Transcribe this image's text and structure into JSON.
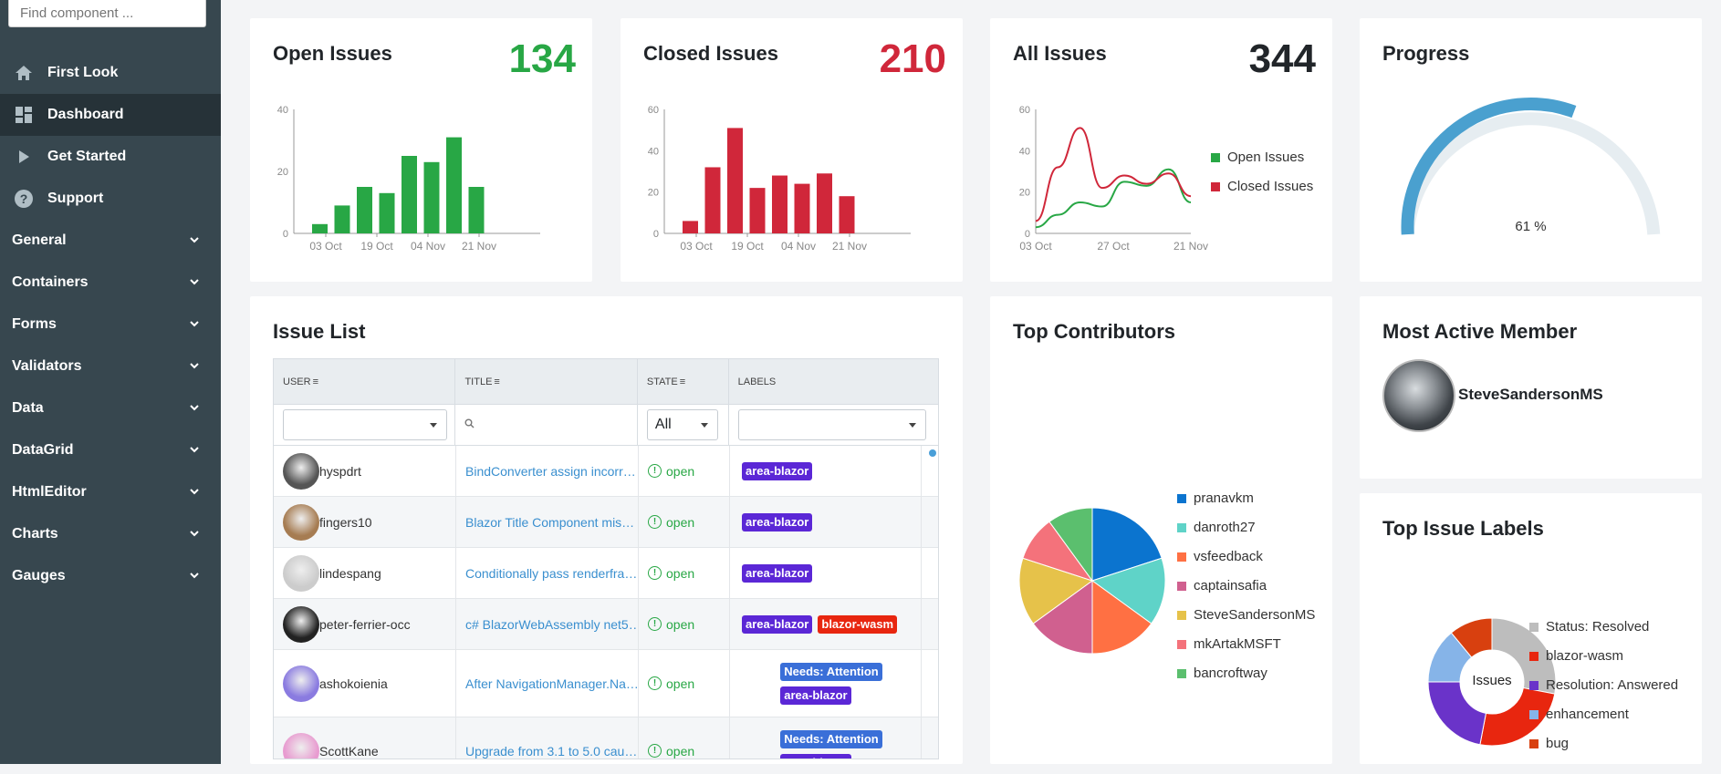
{
  "sidebar": {
    "search_placeholder": "Find component ...",
    "top_items": [
      {
        "label": "First Look",
        "icon": "home-icon"
      },
      {
        "label": "Dashboard",
        "icon": "dashboard-icon",
        "active": true
      },
      {
        "label": "Get Started",
        "icon": "play-icon"
      },
      {
        "label": "Support",
        "icon": "help-icon"
      }
    ],
    "groups": [
      "General",
      "Containers",
      "Forms",
      "Validators",
      "Data",
      "DataGrid",
      "HtmlEditor",
      "Charts",
      "Gauges"
    ]
  },
  "open_issues": {
    "title": "Open Issues",
    "count": "134",
    "color": "#28a745",
    "chart_data": {
      "type": "bar",
      "values": [
        3,
        9,
        15,
        13,
        25,
        23,
        31,
        15
      ],
      "tick_labels": [
        "03 Oct",
        "19 Oct",
        "04 Nov",
        "21 Nov"
      ],
      "y_ticks": [
        "0",
        "20",
        "40"
      ],
      "ylim": [
        0,
        40
      ]
    }
  },
  "closed_issues": {
    "title": "Closed Issues",
    "count": "210",
    "color": "#d0273a",
    "chart_data": {
      "type": "bar",
      "values": [
        6,
        32,
        51,
        22,
        28,
        24,
        29,
        18
      ],
      "tick_labels": [
        "03 Oct",
        "19 Oct",
        "04 Nov",
        "21 Nov"
      ],
      "y_ticks": [
        "0",
        "20",
        "40",
        "60"
      ],
      "ylim": [
        0,
        60
      ]
    }
  },
  "all_issues": {
    "title": "All Issues",
    "count": "344",
    "chart_data": {
      "type": "line",
      "x_ticks": [
        "03 Oct",
        "27 Oct",
        "21 Nov"
      ],
      "y_ticks": [
        "0",
        "20",
        "40",
        "60"
      ],
      "ylim": [
        0,
        60
      ],
      "series": [
        {
          "name": "Open Issues",
          "color": "#28a745",
          "values": [
            3,
            9,
            15,
            13,
            25,
            23,
            31,
            15
          ]
        },
        {
          "name": "Closed Issues",
          "color": "#d0273a",
          "values": [
            6,
            32,
            51,
            22,
            28,
            24,
            29,
            18
          ]
        }
      ]
    }
  },
  "progress": {
    "title": "Progress",
    "value": 61,
    "label": "61 %",
    "color": "#4aa0cf",
    "track_color": "#e6edf1"
  },
  "issue_list": {
    "title": "Issue List",
    "columns": [
      "USER",
      "TITLE",
      "STATE",
      "LABELS"
    ],
    "state_filter": "All",
    "rows": [
      {
        "user": "hyspdrt",
        "title": "BindConverter assign incorr…",
        "state": "open",
        "labels": [
          "area-blazor"
        ]
      },
      {
        "user": "fingers10",
        "title": "Blazor Title Component mis…",
        "state": "open",
        "labels": [
          "area-blazor"
        ]
      },
      {
        "user": "lindespang",
        "title": "Conditionally pass renderfra…",
        "state": "open",
        "labels": [
          "area-blazor"
        ]
      },
      {
        "user": "peter-ferrier-occ",
        "title": "c# BlazorWebAssembly net5…",
        "state": "open",
        "labels": [
          "area-blazor",
          "blazor-wasm"
        ]
      },
      {
        "user": "ashokoienia",
        "title": "After NavigationManager.Na…",
        "state": "open",
        "labels": [
          "Needs: Attention",
          "area-blazor"
        ]
      },
      {
        "user": "ScottKane",
        "title": "Upgrade from 3.1 to 5.0 cau…",
        "state": "open",
        "labels": [
          "Needs: Attention",
          "area-blazor"
        ]
      }
    ],
    "label_colors": {
      "area-blazor": "#5b27d6",
      "blazor-wasm": "#e8260f",
      "Needs: Attention": "#3a6fd8"
    }
  },
  "top_contributors": {
    "title": "Top Contributors",
    "chart_data": {
      "type": "pie",
      "labels": [
        "pranavkm",
        "danroth27",
        "vsfeedback",
        "captainsafia",
        "SteveSandersonMS",
        "mkArtakMSFT",
        "bancroftway"
      ],
      "values": [
        20,
        15,
        15,
        15,
        15,
        10,
        10
      ],
      "colors": [
        "#0b74cf",
        "#5fd3c8",
        "#ff7043",
        "#d0608f",
        "#e6c24a",
        "#f4727b",
        "#5bbf6e"
      ]
    }
  },
  "most_active": {
    "title": "Most Active Member",
    "name": "SteveSandersonMS"
  },
  "top_labels": {
    "title": "Top Issue Labels",
    "center": "Issues",
    "chart_data": {
      "type": "donut",
      "labels": [
        "Status: Resolved",
        "blazor-wasm",
        "Resolution: Answered",
        "enhancement",
        "bug"
      ],
      "values": [
        28,
        25,
        22,
        14,
        11
      ],
      "colors": [
        "#bdbdbd",
        "#e8260f",
        "#6a33c9",
        "#86b4e8",
        "#d8400f"
      ]
    }
  }
}
